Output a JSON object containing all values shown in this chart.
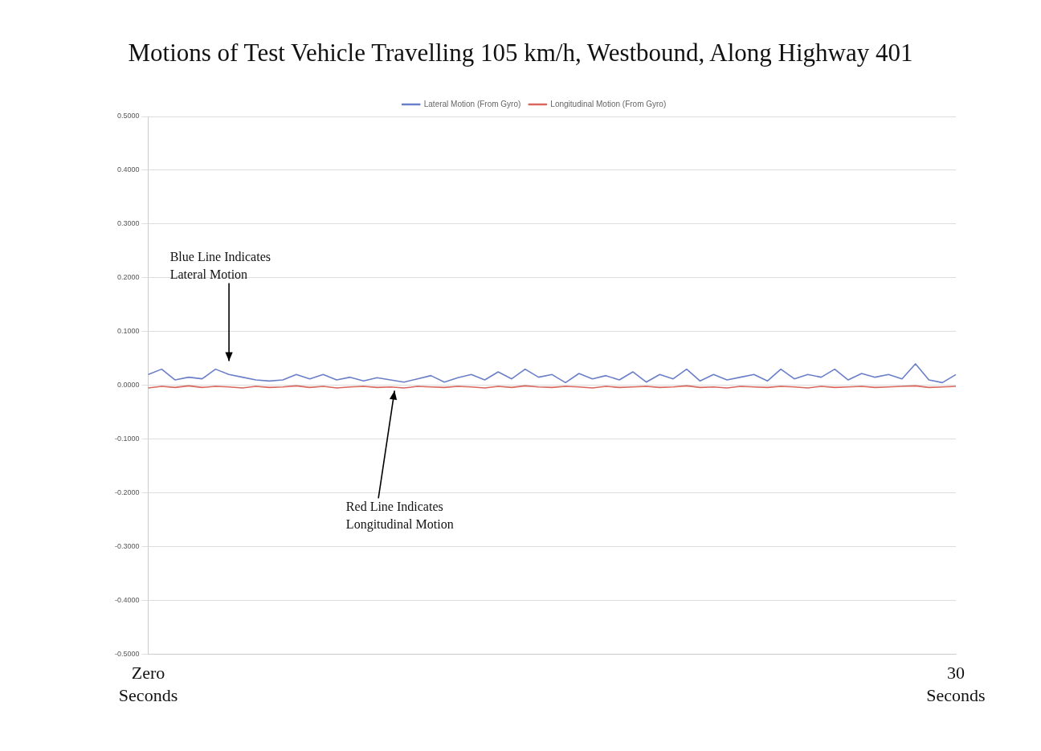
{
  "chart_data": {
    "type": "line",
    "title": "Motions of Test Vehicle Travelling 105 km/h, Westbound, Along Highway 401",
    "categories": [
      null,
      null,
      null,
      null,
      null,
      null,
      null,
      null,
      null,
      null,
      null,
      null,
      null,
      null,
      null,
      null,
      null,
      null,
      null,
      null,
      null,
      null,
      null,
      null,
      null,
      null,
      null,
      null,
      null,
      null,
      null,
      null,
      null,
      null,
      null,
      null,
      null,
      null,
      null,
      null,
      null,
      null,
      null,
      null,
      null,
      null,
      null,
      null,
      null,
      null,
      null,
      null,
      null,
      null,
      null,
      null,
      null,
      null,
      null,
      null,
      null
    ],
    "series": [
      {
        "name": "Lateral Motion (From Gyro)",
        "color": "#6a7fc8",
        "values": [
          0.02,
          0.03,
          0.01,
          0.015,
          0.012,
          0.03,
          0.02,
          0.015,
          0.01,
          0.008,
          0.01,
          0.02,
          0.012,
          0.02,
          0.01,
          0.015,
          0.008,
          0.014,
          0.01,
          0.006,
          0.012,
          0.018,
          0.006,
          0.014,
          0.02,
          0.01,
          0.025,
          0.012,
          0.03,
          0.015,
          0.02,
          0.005,
          0.022,
          0.012,
          0.018,
          0.01,
          0.025,
          0.006,
          0.02,
          0.012,
          0.03,
          0.008,
          0.02,
          0.01,
          0.015,
          0.02,
          0.008,
          0.03,
          0.012,
          0.02,
          0.015,
          0.03,
          0.01,
          0.022,
          0.015,
          0.02,
          0.012,
          0.04,
          0.01,
          0.005,
          0.02
        ]
      },
      {
        "name": "Longitudinal Motion (From Gyro)",
        "color": "#d9675e",
        "values": [
          -0.005,
          -0.002,
          -0.004,
          -0.001,
          -0.004,
          -0.002,
          -0.003,
          -0.005,
          -0.002,
          -0.004,
          -0.003,
          -0.001,
          -0.004,
          -0.002,
          -0.005,
          -0.003,
          -0.002,
          -0.004,
          -0.003,
          -0.005,
          -0.002,
          -0.003,
          -0.004,
          -0.002,
          -0.003,
          -0.005,
          -0.002,
          -0.004,
          -0.001,
          -0.003,
          -0.004,
          -0.002,
          -0.003,
          -0.005,
          -0.002,
          -0.004,
          -0.003,
          -0.002,
          -0.004,
          -0.003,
          -0.001,
          -0.004,
          -0.003,
          -0.005,
          -0.002,
          -0.003,
          -0.004,
          -0.002,
          -0.003,
          -0.005,
          -0.002,
          -0.004,
          -0.003,
          -0.002,
          -0.004,
          -0.003,
          -0.002,
          -0.001,
          -0.004,
          -0.003,
          -0.002
        ]
      }
    ],
    "ylim": [
      -0.5,
      0.5
    ],
    "yticks": [
      {
        "value": -0.5,
        "label": "-0.5000"
      },
      {
        "value": -0.4,
        "label": "-0.4000"
      },
      {
        "value": -0.3,
        "label": "-0.3000"
      },
      {
        "value": -0.2,
        "label": "-0.2000"
      },
      {
        "value": -0.1,
        "label": "-0.1000"
      },
      {
        "value": 0,
        "label": "0.0000"
      },
      {
        "value": 0.1,
        "label": "0.1000"
      },
      {
        "value": 0.2,
        "label": "0.2000"
      },
      {
        "value": 0.3,
        "label": "0.3000"
      },
      {
        "value": 0.4,
        "label": "0.4000"
      },
      {
        "value": 0.5,
        "label": "0.5000"
      }
    ],
    "annotations": [
      "Blue Line Indicates\nLateral Motion",
      "Red Line Indicates\nLongitudinal Motion",
      "Zero\nSeconds",
      "30\nSeconds"
    ],
    "grid": "y",
    "legend": "top",
    "marker": "none",
    "line_style": "solid"
  }
}
